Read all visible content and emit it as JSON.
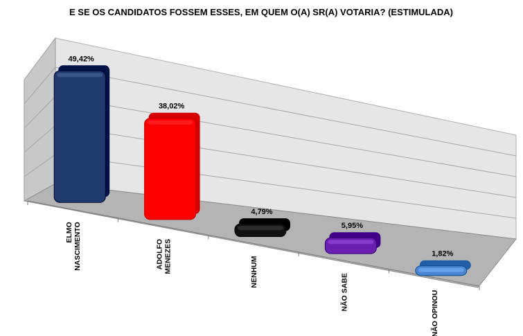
{
  "chart_data": {
    "type": "bar",
    "title": "E SE OS CANDIDATOS FOSSEM ESSES, EM QUEM O(A) SR(A) VOTARIA? (ESTIMULADA)",
    "categories": [
      [
        "ELMO",
        "NASCIMENTO"
      ],
      [
        "ADOLFO",
        "MENEZES"
      ],
      [
        "NENHUM"
      ],
      [
        "NÃO SABE"
      ],
      [
        "NÃO OPINOU"
      ]
    ],
    "values": [
      49.42,
      38.02,
      4.79,
      5.95,
      1.82
    ],
    "value_labels": [
      "49,42%",
      "38,02%",
      "4,79%",
      "5,95%",
      "1,82%"
    ],
    "colors": [
      "#1f3b6e",
      "#ff0000",
      "#111111",
      "#6a1fb0",
      "#4a86d0"
    ],
    "ylim": [
      0,
      60
    ],
    "grid": true,
    "legend": "none"
  }
}
